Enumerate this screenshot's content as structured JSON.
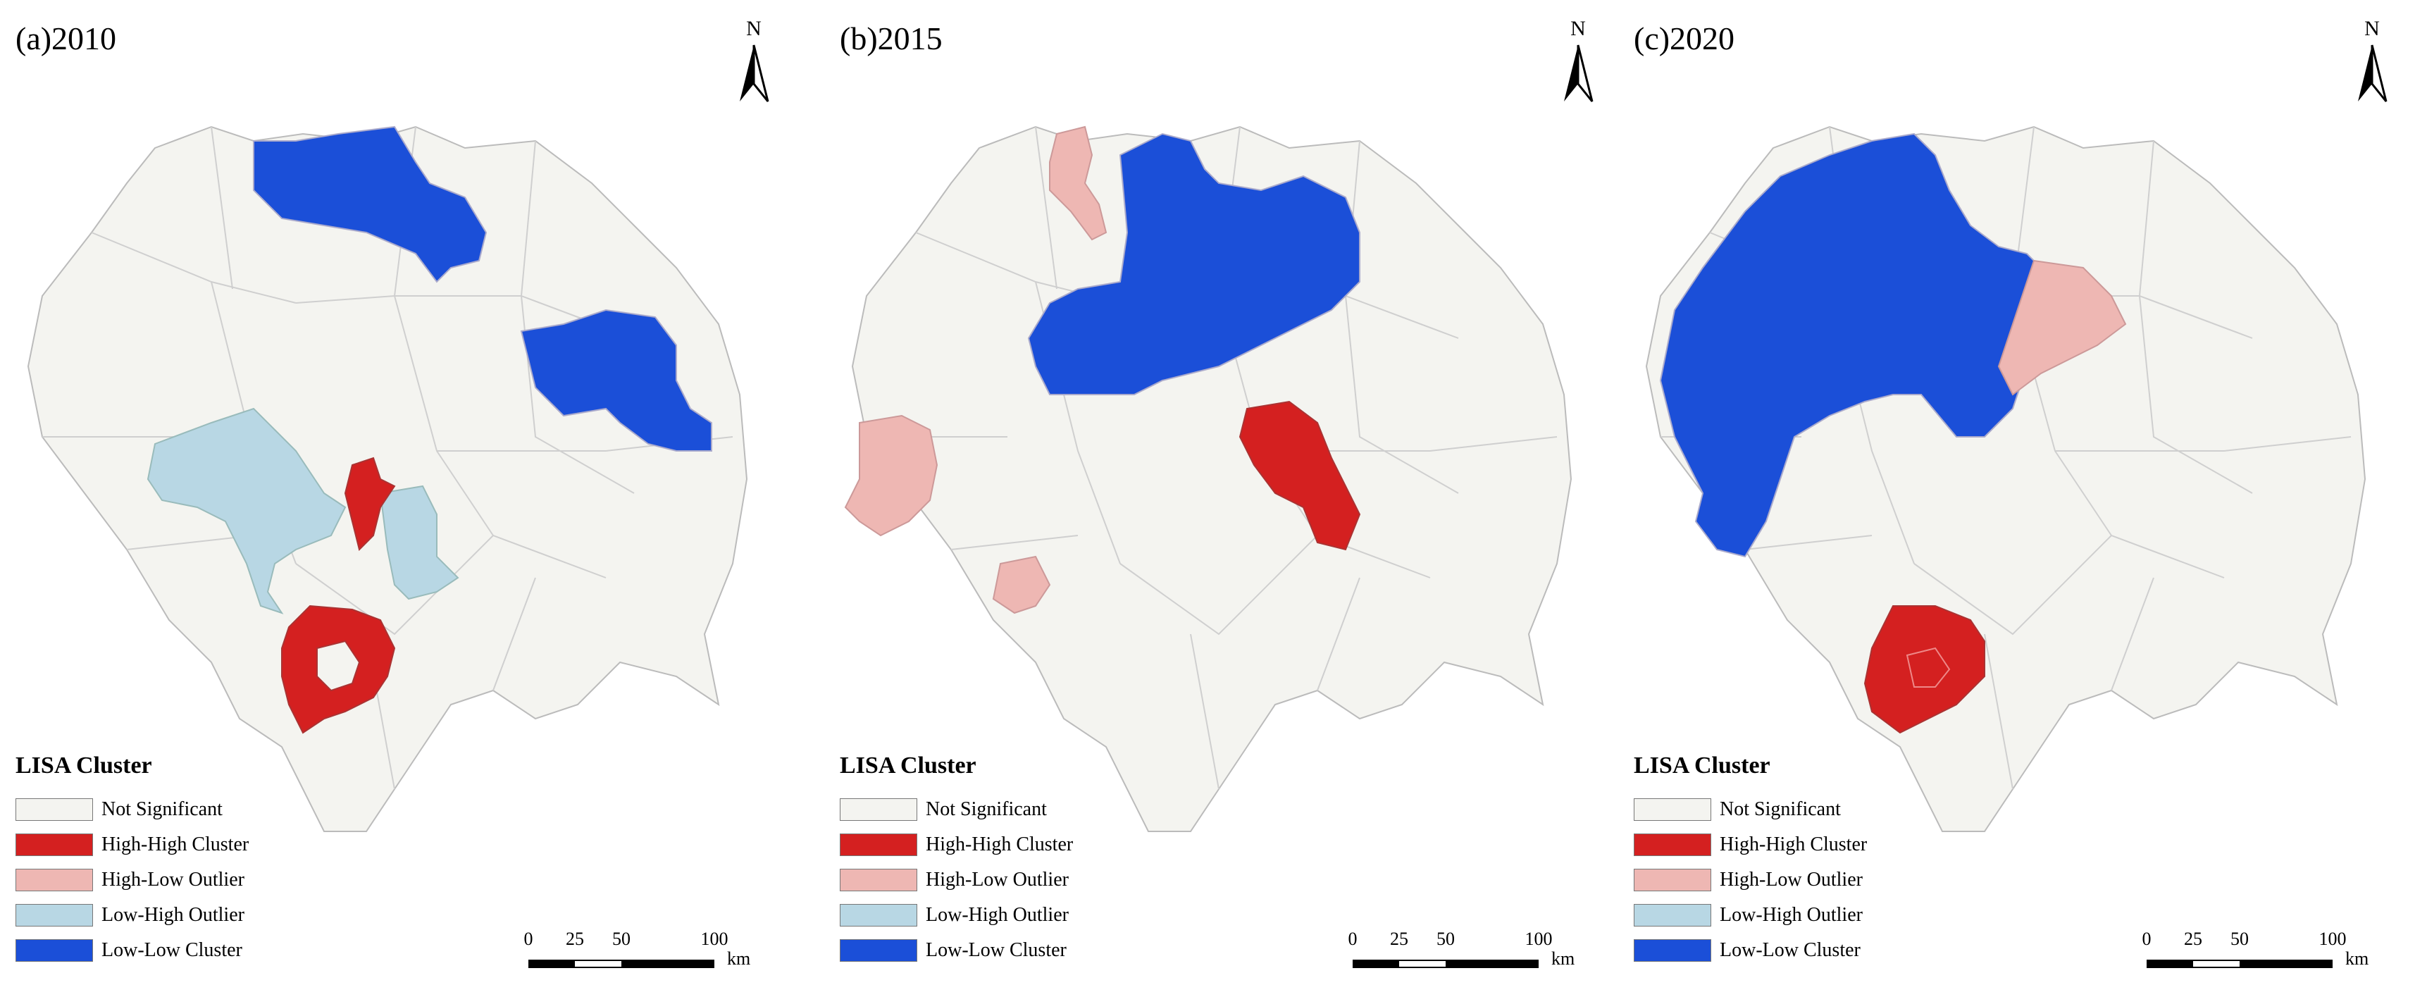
{
  "panels": [
    {
      "title": "(a)2010",
      "highlights": {
        "low_low": [
          "north",
          "east"
        ],
        "low_high": [
          "west-center",
          "center-right"
        ],
        "high_high": [
          "center-small",
          "south-ring"
        ],
        "high_low": []
      }
    },
    {
      "title": "(b)2015",
      "highlights": {
        "low_low": [
          "north-block"
        ],
        "low_high": [],
        "high_high": [
          "center-east"
        ],
        "high_low": [
          "north-small",
          "west",
          "south-west-small"
        ]
      }
    },
    {
      "title": "(c)2020",
      "highlights": {
        "low_low": [
          "north-west-block"
        ],
        "low_high": [],
        "high_high": [
          "south-ring"
        ],
        "high_low": [
          "north-east"
        ]
      }
    }
  ],
  "north_arrow": {
    "label": "N"
  },
  "legend": {
    "title": "LISA Cluster",
    "items": [
      {
        "label": "Not Significant",
        "color": "#f4f4f0"
      },
      {
        "label": "High-High Cluster",
        "color": "#d42020"
      },
      {
        "label": "High-Low Outlier",
        "color": "#eeb7b3"
      },
      {
        "label": "Low-High Outlier",
        "color": "#b8d7e4"
      },
      {
        "label": "Low-Low Cluster",
        "color": "#1b4fd8"
      }
    ]
  },
  "scale": {
    "ticks": [
      "0",
      "25",
      "50",
      "100"
    ],
    "unit": "km"
  }
}
